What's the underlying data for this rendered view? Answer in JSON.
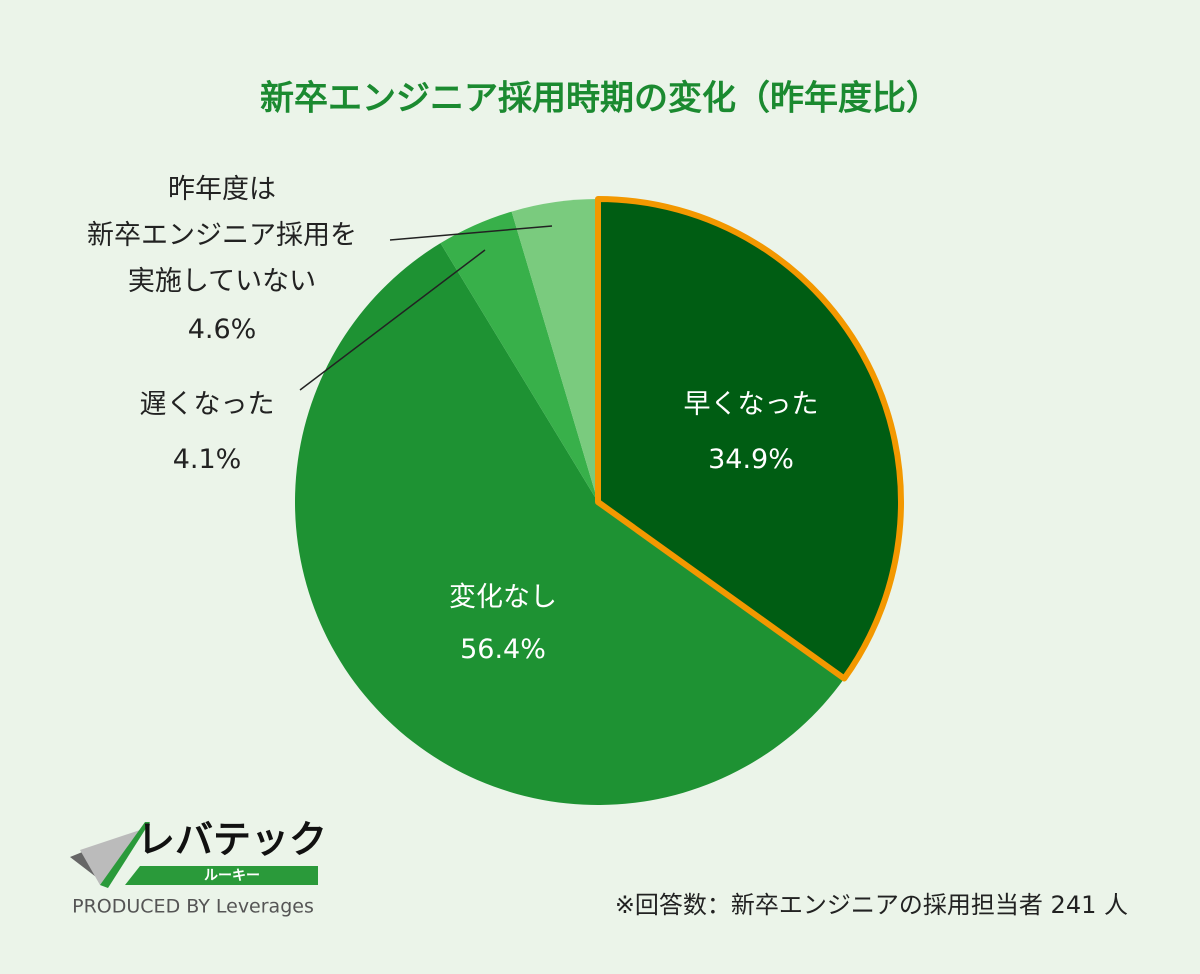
{
  "chart_data": {
    "type": "pie",
    "title": "新卒エンジニア採用時期の変化（昨年度比）",
    "categories": [
      "早くなった",
      "変化なし",
      "遅くなった",
      "昨年度は\n新卒エンジニア採用を\n実施していない"
    ],
    "values": [
      34.9,
      56.4,
      4.1,
      4.6
    ],
    "value_labels": [
      "34.9%",
      "56.4%",
      "4.1%",
      "4.6%"
    ],
    "colors": [
      "#005d13",
      "#1e9233",
      "#38b04a",
      "#7acb7e"
    ],
    "highlight_color": "#f39800"
  },
  "footnote": "※回答数：新卒エンジニアの採用担当者 241 人",
  "logo": {
    "name": "レバテック",
    "sub": "ルーキー",
    "producer": "PRODUCED BY Leverages"
  }
}
